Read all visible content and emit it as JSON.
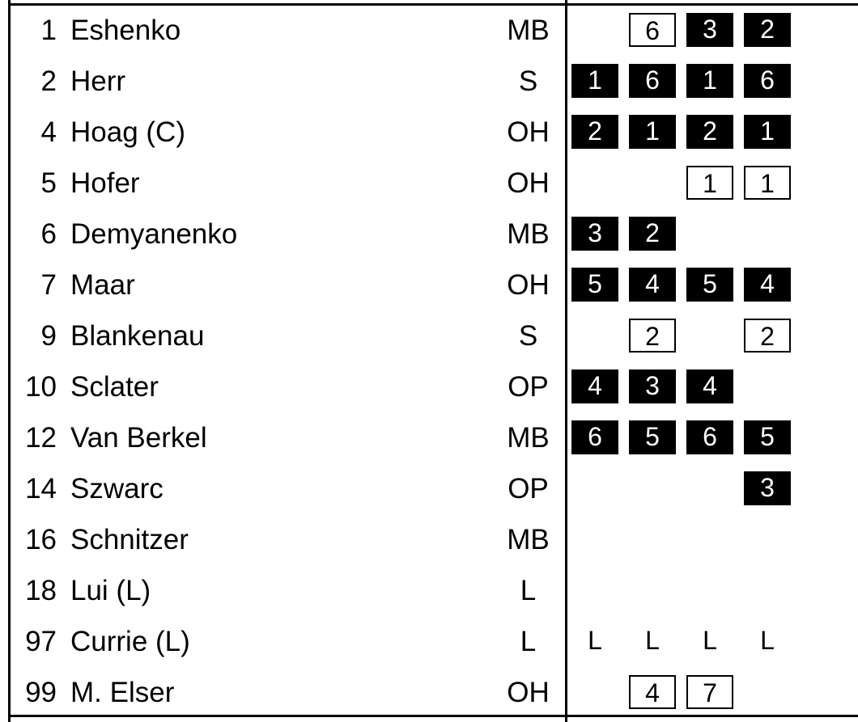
{
  "roster": [
    {
      "number": "1",
      "name": "Eshenko",
      "position": "MB",
      "sets": [
        null,
        {
          "text": "6",
          "style": "boxed"
        },
        {
          "text": "3",
          "style": "filled"
        },
        {
          "text": "2",
          "style": "filled"
        }
      ]
    },
    {
      "number": "2",
      "name": "Herr",
      "position": "S",
      "sets": [
        {
          "text": "1",
          "style": "filled"
        },
        {
          "text": "6",
          "style": "filled"
        },
        {
          "text": "1",
          "style": "filled"
        },
        {
          "text": "6",
          "style": "filled"
        }
      ]
    },
    {
      "number": "4",
      "name": "Hoag (C)",
      "position": "OH",
      "sets": [
        {
          "text": "2",
          "style": "filled"
        },
        {
          "text": "1",
          "style": "filled"
        },
        {
          "text": "2",
          "style": "filled"
        },
        {
          "text": "1",
          "style": "filled"
        }
      ]
    },
    {
      "number": "5",
      "name": "Hofer",
      "position": "OH",
      "sets": [
        null,
        null,
        {
          "text": "1",
          "style": "boxed"
        },
        {
          "text": "1",
          "style": "boxed"
        }
      ]
    },
    {
      "number": "6",
      "name": "Demyanenko",
      "position": "MB",
      "sets": [
        {
          "text": "3",
          "style": "filled"
        },
        {
          "text": "2",
          "style": "filled"
        },
        null,
        null
      ]
    },
    {
      "number": "7",
      "name": "Maar",
      "position": "OH",
      "sets": [
        {
          "text": "5",
          "style": "filled"
        },
        {
          "text": "4",
          "style": "filled"
        },
        {
          "text": "5",
          "style": "filled"
        },
        {
          "text": "4",
          "style": "filled"
        }
      ]
    },
    {
      "number": "9",
      "name": "Blankenau",
      "position": "S",
      "sets": [
        null,
        {
          "text": "2",
          "style": "boxed"
        },
        null,
        {
          "text": "2",
          "style": "boxed"
        }
      ]
    },
    {
      "number": "10",
      "name": "Sclater",
      "position": "OP",
      "sets": [
        {
          "text": "4",
          "style": "filled"
        },
        {
          "text": "3",
          "style": "filled"
        },
        {
          "text": "4",
          "style": "filled"
        },
        null
      ]
    },
    {
      "number": "12",
      "name": "Van Berkel",
      "position": "MB",
      "sets": [
        {
          "text": "6",
          "style": "filled"
        },
        {
          "text": "5",
          "style": "filled"
        },
        {
          "text": "6",
          "style": "filled"
        },
        {
          "text": "5",
          "style": "filled"
        }
      ]
    },
    {
      "number": "14",
      "name": "Szwarc",
      "position": "OP",
      "sets": [
        null,
        null,
        null,
        {
          "text": "3",
          "style": "filled"
        }
      ]
    },
    {
      "number": "16",
      "name": "Schnitzer",
      "position": "MB",
      "sets": [
        null,
        null,
        null,
        null
      ]
    },
    {
      "number": "18",
      "name": "Lui (L)",
      "position": "L",
      "sets": [
        null,
        null,
        null,
        null
      ]
    },
    {
      "number": "97",
      "name": "Currie (L)",
      "position": "L",
      "sets": [
        {
          "text": "L",
          "style": "plain"
        },
        {
          "text": "L",
          "style": "plain"
        },
        {
          "text": "L",
          "style": "plain"
        },
        {
          "text": "L",
          "style": "plain"
        }
      ]
    },
    {
      "number": "99",
      "name": "M. Elser",
      "position": "OH",
      "sets": [
        null,
        {
          "text": "4",
          "style": "boxed"
        },
        {
          "text": "7",
          "style": "boxed"
        },
        null
      ]
    }
  ]
}
